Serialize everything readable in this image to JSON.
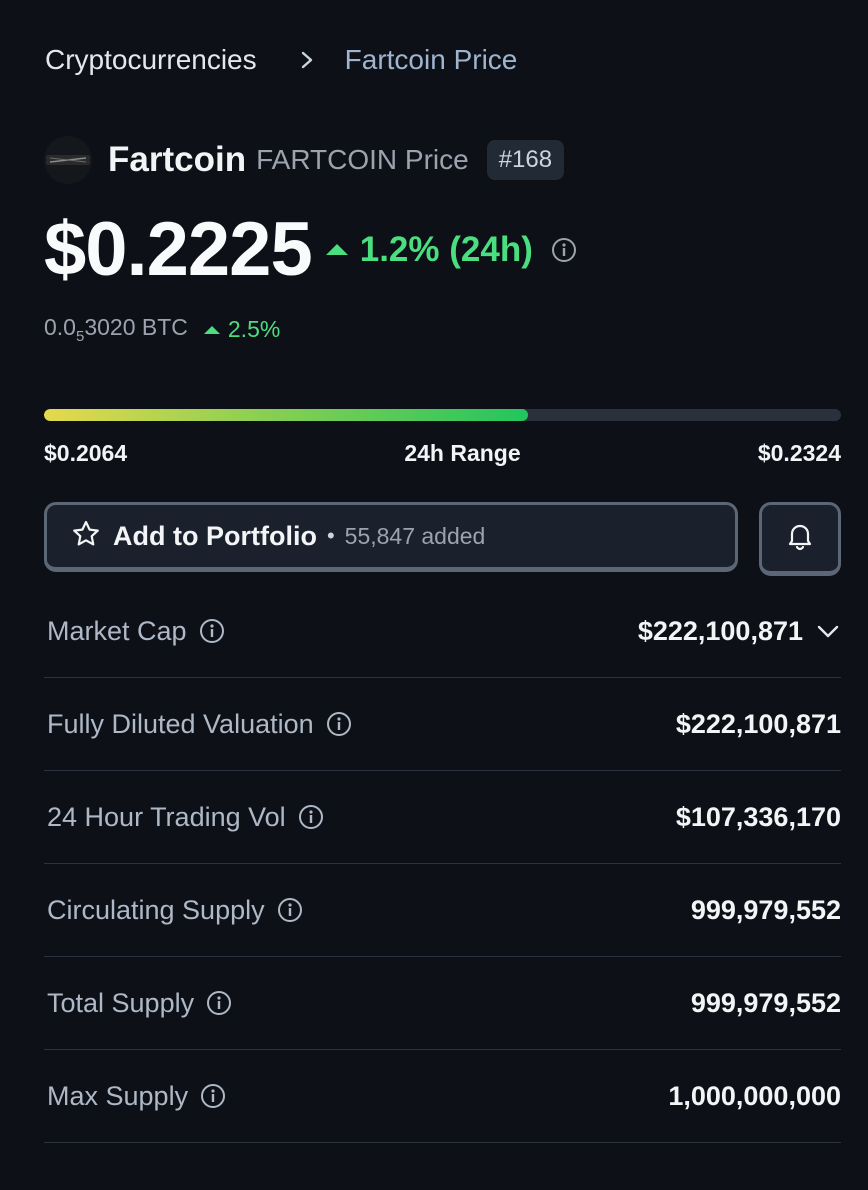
{
  "breadcrumb": {
    "root": "Cryptocurrencies",
    "current": "Fartcoin Price"
  },
  "coin": {
    "name": "Fartcoin",
    "symbol_label": "FARTCOIN Price",
    "rank": "#168",
    "logo_icon": "fartcoin-logo"
  },
  "price": {
    "value": "$0.2225",
    "change": "1.2% (24h)",
    "change_direction": "up",
    "btc_prefix": "0.0",
    "btc_sub": "5",
    "btc_rest": "3020 BTC",
    "btc_change": "2.5%"
  },
  "range": {
    "low": "$0.2064",
    "title": "24h Range",
    "high": "$0.2324",
    "position_fraction": 0.607
  },
  "actions": {
    "portfolio_label": "Add to Portfolio",
    "portfolio_dot": "•",
    "portfolio_count": "55,847 added",
    "portfolio_icon": "star-icon",
    "alert_icon": "bell-icon"
  },
  "stats": [
    {
      "label": "Market Cap",
      "value": "$222,100,871",
      "expandable": true
    },
    {
      "label": "Fully Diluted Valuation",
      "value": "$222,100,871",
      "expandable": false
    },
    {
      "label": "24 Hour Trading Vol",
      "value": "$107,336,170",
      "expandable": false
    },
    {
      "label": "Circulating Supply",
      "value": "999,979,552",
      "expandable": false
    },
    {
      "label": "Total Supply",
      "value": "999,979,552",
      "expandable": false
    },
    {
      "label": "Max Supply",
      "value": "1,000,000,000",
      "expandable": false
    }
  ],
  "colors": {
    "background": "#0d1117",
    "positive": "#4ade80",
    "muted": "#9ca3af",
    "breadcrumb_current": "#9fb4cf"
  }
}
